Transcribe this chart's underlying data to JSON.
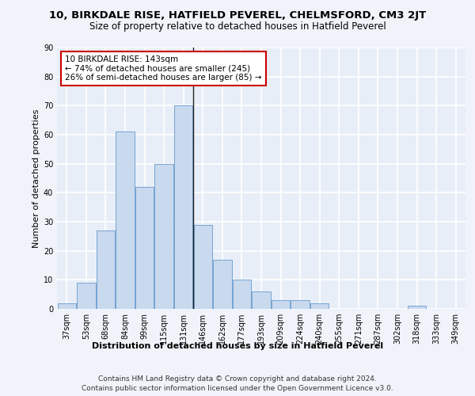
{
  "title": "10, BIRKDALE RISE, HATFIELD PEVEREL, CHELMSFORD, CM3 2JT",
  "subtitle": "Size of property relative to detached houses in Hatfield Peverel",
  "xlabel": "Distribution of detached houses by size in Hatfield Peverel",
  "ylabel": "Number of detached properties",
  "categories": [
    "37sqm",
    "53sqm",
    "68sqm",
    "84sqm",
    "99sqm",
    "115sqm",
    "131sqm",
    "146sqm",
    "162sqm",
    "177sqm",
    "193sqm",
    "209sqm",
    "224sqm",
    "240sqm",
    "255sqm",
    "271sqm",
    "287sqm",
    "302sqm",
    "318sqm",
    "333sqm",
    "349sqm"
  ],
  "values": [
    2,
    9,
    27,
    61,
    42,
    50,
    70,
    29,
    17,
    10,
    6,
    3,
    3,
    2,
    0,
    0,
    0,
    0,
    1,
    0,
    0
  ],
  "bar_color": "#c9d9ee",
  "bar_edge_color": "#6699cc",
  "vline_pos": 6.5,
  "annotation_line1": "10 BIRKDALE RISE: 143sqm",
  "annotation_line2": "← 74% of detached houses are smaller (245)",
  "annotation_line3": "26% of semi-detached houses are larger (85) →",
  "annotation_box_facecolor": "#ffffff",
  "annotation_box_edgecolor": "#cc0000",
  "footer_line1": "Contains HM Land Registry data © Crown copyright and database right 2024.",
  "footer_line2": "Contains public sector information licensed under the Open Government Licence v3.0.",
  "ylim": [
    0,
    90
  ],
  "background_color": "#e8eef8",
  "grid_color": "#ffffff",
  "fig_facecolor": "#f0f4fa",
  "title_fontsize": 9.5,
  "subtitle_fontsize": 8.5,
  "axis_label_fontsize": 8,
  "tick_fontsize": 7,
  "annotation_fontsize": 7.5,
  "footer_fontsize": 6.5
}
